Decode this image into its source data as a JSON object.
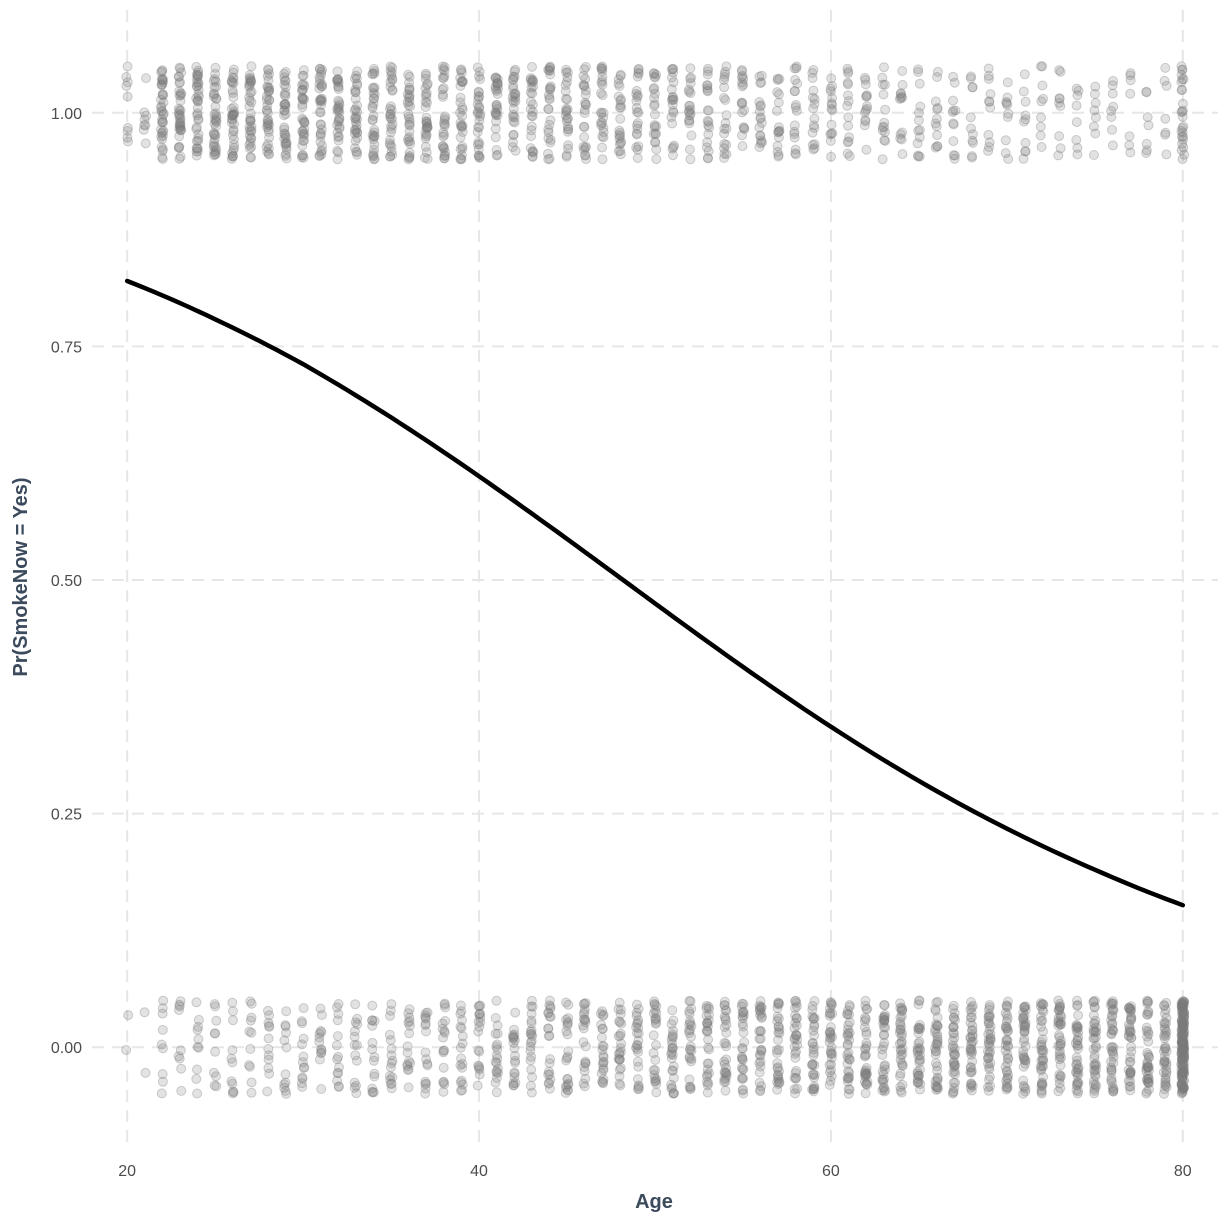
{
  "chart_data": {
    "type": "scatter",
    "xlabel": "Age",
    "ylabel": "Pr(SmokeNow = Yes)",
    "xlim": [
      18,
      82
    ],
    "ylim": [
      -0.11,
      1.11
    ],
    "x_ticks": [
      20,
      40,
      60,
      80
    ],
    "x_tick_labels": [
      "20",
      "40",
      "60",
      "80"
    ],
    "y_ticks": [
      0,
      0.25,
      0.5,
      0.75,
      1
    ],
    "y_tick_labels": [
      "0.00",
      "0.25",
      "0.50",
      "0.75",
      "1.00"
    ],
    "grid": true,
    "legend": "none",
    "curve": {
      "kind": "logistic",
      "x": [
        20,
        25,
        30,
        35,
        40,
        45,
        50,
        55,
        60,
        65,
        70,
        75,
        80
      ],
      "y": [
        0.82,
        0.779,
        0.731,
        0.674,
        0.611,
        0.544,
        0.475,
        0.407,
        0.343,
        0.285,
        0.234,
        0.19,
        0.152
      ]
    },
    "points_summary": {
      "description_groups": [
        {
          "y": 1,
          "age_min": 20,
          "age_max": 80,
          "density": "higher at younger ages"
        },
        {
          "y": 0,
          "age_min": 20,
          "age_max": 80,
          "density": "higher at older ages"
        }
      ]
    },
    "colors": {
      "curve": "#000000",
      "points": "#7a7a7a",
      "grid": "#e6e6e6",
      "axis_title": "#3b4a5c"
    }
  }
}
